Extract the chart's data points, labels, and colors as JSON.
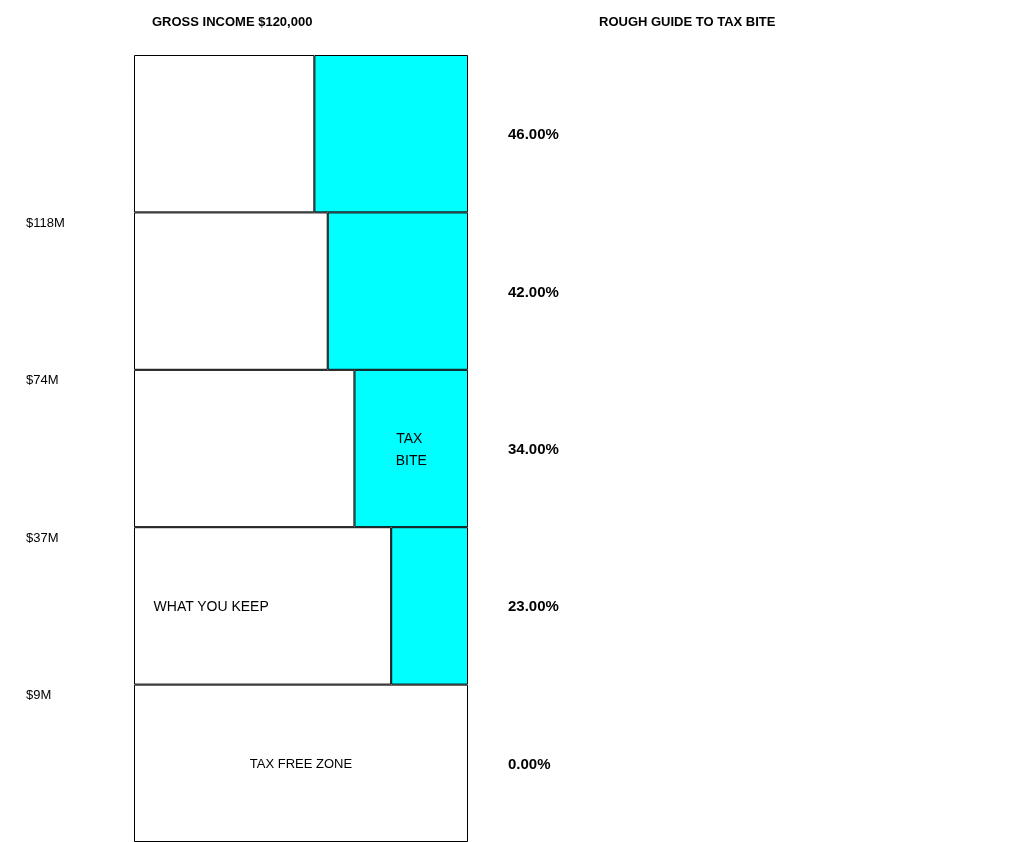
{
  "chart_data": {
    "type": "bar",
    "title": "GROSS INCOME $120,000",
    "subtitle": "ROUGH GUIDE TO TAX BITE",
    "orientation": "horizontal",
    "stacked": true,
    "legend": false,
    "grid": false,
    "xlim": [
      0,
      100
    ],
    "categories": [
      null,
      null,
      null,
      null,
      null
    ],
    "series": [
      {
        "name": "WHAT YOU KEEP",
        "color": "#ffffff",
        "values": [
          54,
          58,
          66,
          77,
          100
        ]
      },
      {
        "name": "TAX BITE",
        "color": "#00ffff",
        "values": [
          46,
          42,
          34,
          23,
          0
        ],
        "value_labels": [
          "46.00%",
          "42.00%",
          "34.00%",
          "23.00%",
          "0.00%"
        ]
      }
    ],
    "annotations": [
      "$118M",
      "$74M",
      "$37M",
      "$9M",
      "TAX FREE ZONE"
    ]
  }
}
